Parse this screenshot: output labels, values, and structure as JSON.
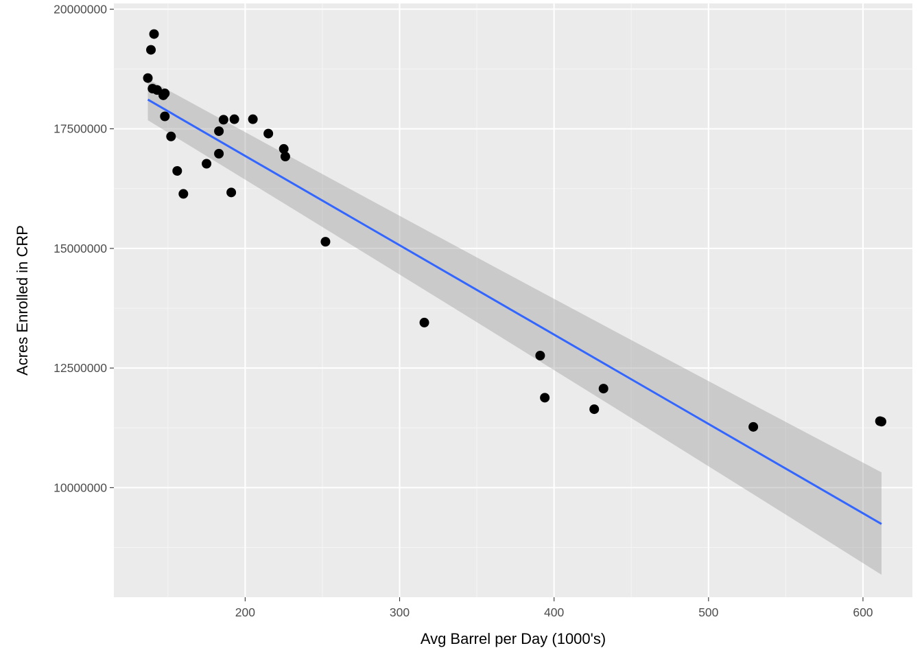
{
  "chart_data": {
    "type": "scatter",
    "xlabel": "Avg Barrel per Day (1000's)",
    "ylabel": "Acres Enrolled in CRP",
    "xlim": [
      115,
      632
    ],
    "ylim": [
      7710000,
      20120000
    ],
    "x_ticks": [
      200,
      300,
      400,
      500,
      600
    ],
    "x_tick_labels": [
      "200",
      "300",
      "400",
      "500",
      "600"
    ],
    "y_ticks": [
      10000000,
      12500000,
      15000000,
      17500000,
      20000000
    ],
    "y_tick_labels": [
      "10000000",
      "12500000",
      "15000000",
      "17500000",
      "20000000"
    ],
    "grid": true,
    "legend": "none",
    "colors": {
      "panel_bg": "#EBEBEB",
      "grid_major": "#FFFFFF",
      "grid_minor": "#F5F5F5",
      "points": "#000000",
      "fit_line": "#3366FF",
      "confidence_band": "#999999"
    },
    "series": [
      {
        "points": [
          {
            "x": 137,
            "y": 18560000
          },
          {
            "x": 139,
            "y": 19150000
          },
          {
            "x": 141,
            "y": 19480000
          },
          {
            "x": 140,
            "y": 18340000
          },
          {
            "x": 143,
            "y": 18310000
          },
          {
            "x": 147,
            "y": 18200000
          },
          {
            "x": 148,
            "y": 18240000
          },
          {
            "x": 148,
            "y": 17760000
          },
          {
            "x": 152,
            "y": 17340000
          },
          {
            "x": 156,
            "y": 16620000
          },
          {
            "x": 160,
            "y": 16140000
          },
          {
            "x": 175,
            "y": 16770000
          },
          {
            "x": 183,
            "y": 17450000
          },
          {
            "x": 183,
            "y": 16980000
          },
          {
            "x": 186,
            "y": 17690000
          },
          {
            "x": 191,
            "y": 16170000
          },
          {
            "x": 193,
            "y": 17700000
          },
          {
            "x": 205,
            "y": 17700000
          },
          {
            "x": 215,
            "y": 17400000
          },
          {
            "x": 225,
            "y": 17080000
          },
          {
            "x": 226,
            "y": 16920000
          },
          {
            "x": 252,
            "y": 15140000
          },
          {
            "x": 316,
            "y": 13450000
          },
          {
            "x": 391,
            "y": 12760000
          },
          {
            "x": 394,
            "y": 11880000
          },
          {
            "x": 426,
            "y": 11640000
          },
          {
            "x": 432,
            "y": 12070000
          },
          {
            "x": 529,
            "y": 11270000
          },
          {
            "x": 611,
            "y": 11390000
          },
          {
            "x": 612,
            "y": 11380000
          }
        ]
      }
    ],
    "fit": {
      "method": "lm",
      "x": [
        137,
        612
      ],
      "y": [
        18110000,
        9240000
      ],
      "band_lower": [
        17680000,
        8180000
      ],
      "band_upper": [
        18540000,
        10320000
      ]
    }
  }
}
